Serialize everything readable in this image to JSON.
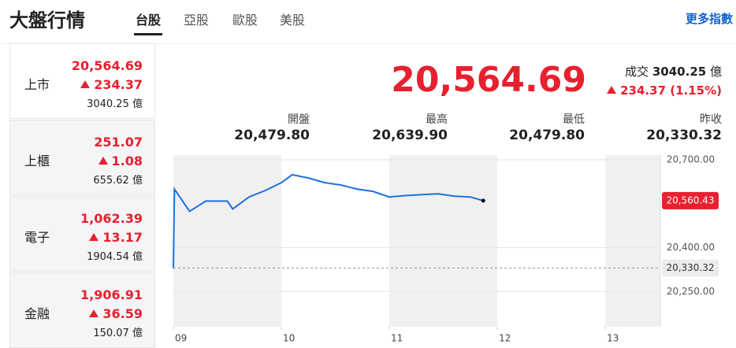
{
  "header": {
    "title": "大盤行情",
    "tabs": [
      "台股",
      "亞股",
      "歐股",
      "美股"
    ],
    "more_link": "更多指數"
  },
  "sidebar": [
    {
      "name": "上市",
      "price": "20,564.69",
      "change": "234.37",
      "volume": "3040.25",
      "unit": "億"
    },
    {
      "name": "上櫃",
      "price": "251.07",
      "change": "1.08",
      "volume": "655.62",
      "unit": "億"
    },
    {
      "name": "電子",
      "price": "1,062.39",
      "change": "13.17",
      "volume": "1904.54",
      "unit": "億"
    },
    {
      "name": "金融",
      "price": "1,906.91",
      "change": "36.59",
      "volume": "150.07",
      "unit": "億"
    }
  ],
  "quote": {
    "price": "20,564.69",
    "volume_label": "成交",
    "volume": "3040.25",
    "unit": "億",
    "change": "234.37",
    "change_pct": "(1.15%)"
  },
  "stats": [
    {
      "label": "開盤",
      "value": "20,479.80"
    },
    {
      "label": "最高",
      "value": "20,639.90"
    },
    {
      "label": "最低",
      "value": "20,479.80"
    },
    {
      "label": "昨收",
      "value": "20,330.32"
    }
  ],
  "chart_data": {
    "type": "line",
    "color": "#1f6fe0",
    "x": [
      9.0,
      9.01,
      9.15,
      9.3,
      9.5,
      9.55,
      9.7,
      9.85,
      10.0,
      10.1,
      10.25,
      10.4,
      10.55,
      10.7,
      10.85,
      11.0,
      11.15,
      11.3,
      11.45,
      11.6,
      11.75,
      11.87
    ],
    "values": [
      20330,
      20600,
      20524,
      20559,
      20559,
      20532,
      20573,
      20595,
      20622,
      20649,
      20638,
      20622,
      20614,
      20600,
      20592,
      20573,
      20578,
      20581,
      20584,
      20576,
      20573,
      20560.43
    ],
    "xlim": [
      9,
      13.51
    ],
    "ylim": [
      20130,
      20716
    ],
    "xticks": [
      {
        "value": 9,
        "label": "09"
      },
      {
        "value": 10,
        "label": "10"
      },
      {
        "value": 11,
        "label": "11"
      },
      {
        "value": 12,
        "label": "12"
      },
      {
        "value": 13,
        "label": "13"
      }
    ],
    "yticks": [
      {
        "value": 20700,
        "label": "20,700.00"
      },
      {
        "value": 20400,
        "label": "20,400.00"
      },
      {
        "value": 20250,
        "label": "20,250.00"
      }
    ],
    "last_badge": {
      "value": 20560.43,
      "label": "20,560.43"
    },
    "reference": {
      "value": 20330.32,
      "label": "20,330.32"
    }
  }
}
